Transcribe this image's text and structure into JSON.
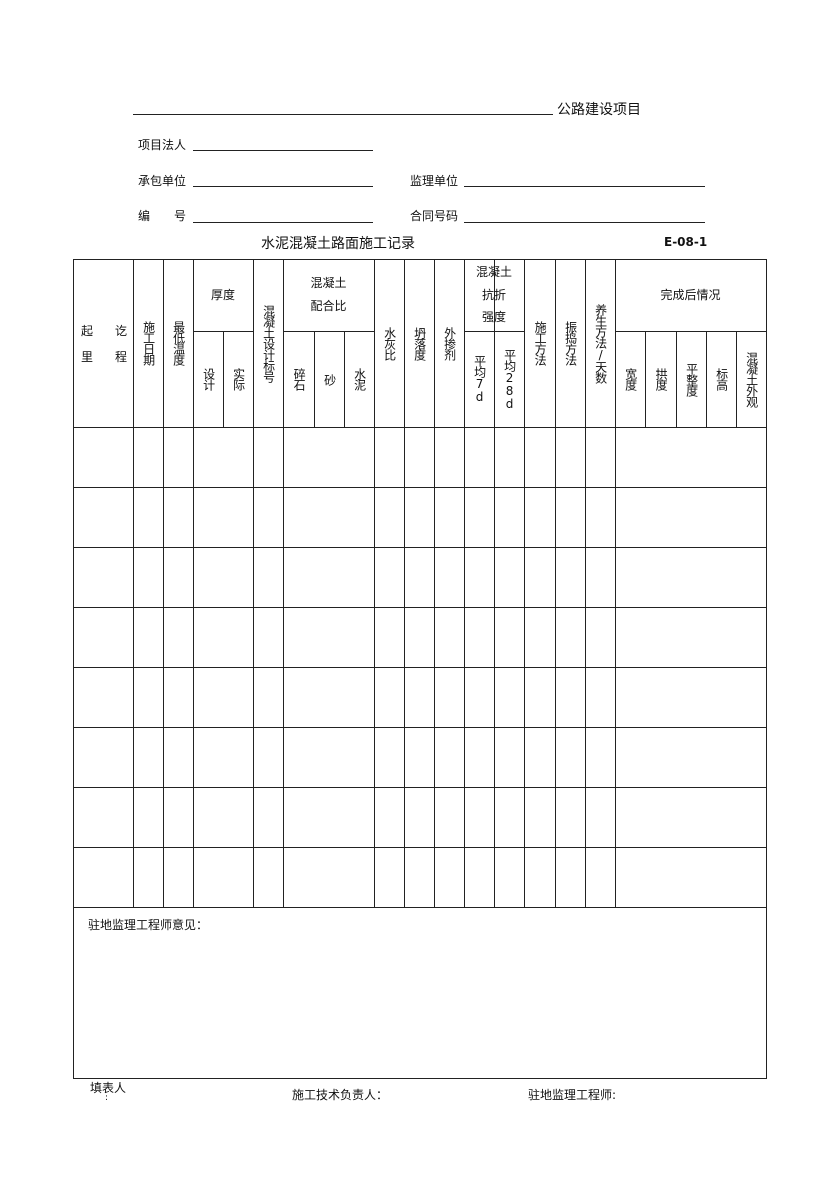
{
  "header": {
    "project_suffix": "公路建设项目",
    "owner_label": "项目法人",
    "contractor_label": "承包单位",
    "supervisor_label": "监理单位",
    "number_label": "编　　号",
    "contract_label": "合同号码"
  },
  "title": "水泥混凝土路面施工记录",
  "form_code": "E-08-1",
  "table": {
    "columns": {
      "station_start": "起",
      "station_end": "讫",
      "station_li": "里",
      "station_cheng": "程",
      "date": "施工日期",
      "min_temp": "最低温度",
      "thickness": "厚度",
      "thickness_design": "设计",
      "thickness_actual": "实际",
      "design_grade": "混凝土设计标号",
      "mix_ratio": "混凝土\n配合比",
      "gravel": "碎石",
      "sand": "砂",
      "cement": "水泥",
      "wc_ratio": "水灰比",
      "slump": "坍落度",
      "admixture": "外掺剂",
      "flex_strength": "混凝土\n抗折\n强度",
      "avg_7d": "平均7d",
      "avg_28d": "平均28d",
      "method": "施工方法",
      "vibration": "振捣方法",
      "curing": "养生方法/天数",
      "completion": "完成后情况",
      "width": "宽度",
      "camber": "拱度",
      "flatness": "平整度",
      "elevation": "标高",
      "appearance": "混凝土外观"
    },
    "row_count": 8
  },
  "comments_label": "驻地监理工程师意见：",
  "footer": {
    "filler": "填表人",
    "filler_colon": ":",
    "tech_lead": "施工技术负责人：",
    "supervisor": "驻地监理工程师:"
  }
}
